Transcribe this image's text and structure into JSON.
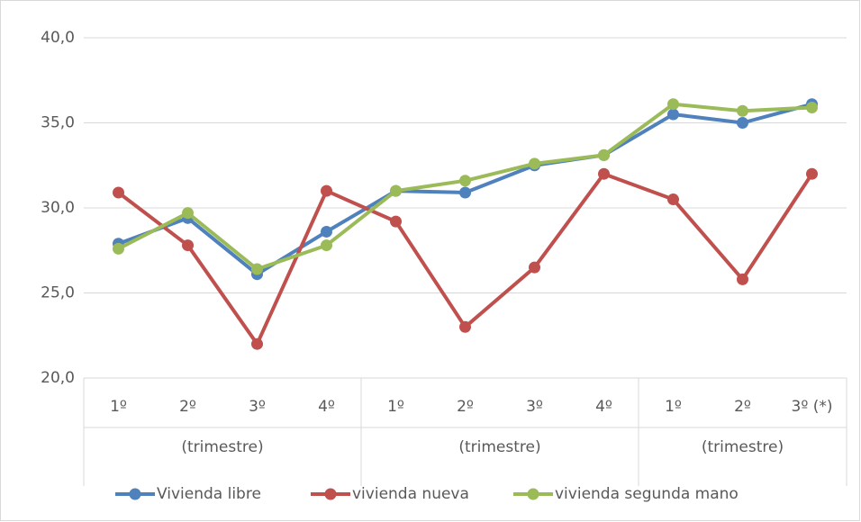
{
  "chart_data": {
    "type": "line",
    "categories": [
      "1º",
      "2º",
      "3º",
      "4º",
      "1º",
      "2º",
      "3º",
      "4º",
      "1º",
      "2º",
      "3º (*)"
    ],
    "groups": [
      "(trimestre)",
      "(trimestre)",
      "(trimestre)"
    ],
    "series": [
      {
        "name": "Vivienda libre",
        "color": "#4f81bd",
        "values": [
          27.9,
          29.4,
          26.1,
          28.6,
          31.0,
          30.9,
          32.5,
          33.1,
          35.5,
          35.0,
          36.1
        ]
      },
      {
        "name": "vivienda nueva",
        "color": "#c0504d",
        "values": [
          30.9,
          27.8,
          22.0,
          31.0,
          29.2,
          23.0,
          26.5,
          32.0,
          30.5,
          25.8,
          32.0
        ]
      },
      {
        "name": "vivienda segunda mano",
        "color": "#9bbb59",
        "values": [
          27.6,
          29.7,
          26.4,
          27.8,
          31.0,
          31.6,
          32.6,
          33.1,
          36.1,
          35.7,
          35.9
        ]
      }
    ],
    "ylim": [
      20,
      40
    ],
    "yticks": [
      {
        "value": 20,
        "label": "20,0"
      },
      {
        "value": 25,
        "label": "25,0"
      },
      {
        "value": 30,
        "label": "30,0"
      },
      {
        "value": 35,
        "label": "35,0"
      },
      {
        "value": 40,
        "label": "40,0"
      }
    ],
    "grid": true,
    "legend": "bottom"
  }
}
